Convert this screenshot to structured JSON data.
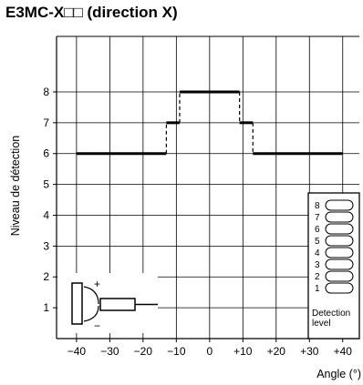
{
  "chart_data": {
    "type": "line",
    "title": "E3MC-X□□ (direction X)",
    "xlabel": "Angle (°)",
    "ylabel": "Niveau de détection",
    "x_ticks": [
      "−40",
      "−30",
      "−20",
      "−10",
      "0",
      "+10",
      "+20",
      "+30",
      "+40"
    ],
    "x_tick_values": [
      -40,
      -30,
      -20,
      -10,
      0,
      10,
      20,
      30,
      40
    ],
    "y_ticks": [
      "1",
      "2",
      "3",
      "4",
      "5",
      "6",
      "7",
      "8"
    ],
    "y_tick_values": [
      1,
      2,
      3,
      4,
      5,
      6,
      7,
      8
    ],
    "xlim": [
      -46,
      45
    ],
    "ylim": [
      0,
      9.8
    ],
    "grid": true,
    "series": [
      {
        "name": "",
        "x": [
          -40,
          -13,
          -13,
          -9,
          -9,
          9,
          9,
          13,
          13,
          40
        ],
        "y": [
          6,
          6,
          7,
          7,
          8,
          8,
          7,
          7,
          6,
          6
        ]
      }
    ],
    "legend": {
      "title": "Detection level",
      "levels": [
        "8",
        "7",
        "6",
        "5",
        "4",
        "3",
        "2",
        "1"
      ],
      "placement": "bottom-right"
    },
    "inset": {
      "plus_label": "+",
      "minus_label": "−",
      "placement": "bottom-left"
    }
  },
  "colors": {
    "line": "#000000",
    "grid": "#000000"
  }
}
